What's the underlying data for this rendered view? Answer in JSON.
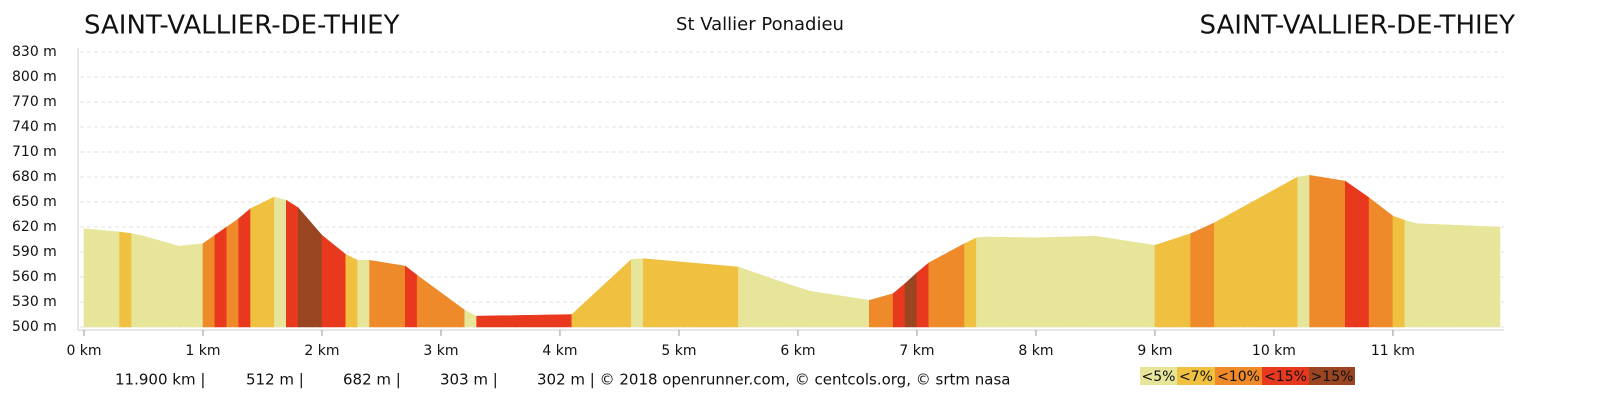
{
  "chart_data": {
    "type": "elevation-profile",
    "title_left": "SAINT-VALLIER-DE-THIEY",
    "title": "St Vallier Ponadieu",
    "title_right": "SAINT-VALLIER-DE-THIEY",
    "x": [
      0,
      0.3,
      0.4,
      0.5,
      0.8,
      1.0,
      1.1,
      1.2,
      1.3,
      1.4,
      1.6,
      1.7,
      1.8,
      2.0,
      2.2,
      2.3,
      2.4,
      2.7,
      2.8,
      3.2,
      3.3,
      4.1,
      4.6,
      4.7,
      5.5,
      5.8,
      6.1,
      6.6,
      6.8,
      6.9,
      7.0,
      7.1,
      7.4,
      7.5,
      7.6,
      8.0,
      8.5,
      9.0,
      9.3,
      9.5,
      10.2,
      10.3,
      10.6,
      10.8,
      11.0,
      11.1,
      11.2,
      11.9
    ],
    "values": [
      618,
      614,
      612,
      609,
      597,
      600,
      610,
      620,
      630,
      642,
      656,
      652,
      643,
      610,
      587,
      580,
      580,
      573,
      562,
      520,
      513,
      515,
      581,
      582,
      572,
      557,
      543,
      532,
      540,
      552,
      565,
      577,
      600,
      607,
      608,
      607,
      609,
      598,
      612,
      625,
      680,
      682,
      675,
      655,
      633,
      628,
      624,
      620
    ],
    "classes": [
      0,
      1,
      0,
      0,
      0,
      2,
      3,
      2,
      3,
      1,
      0,
      3,
      4,
      3,
      1,
      0,
      2,
      3,
      2,
      0,
      3,
      1,
      0,
      1,
      0,
      0,
      0,
      2,
      3,
      4,
      3,
      2,
      1,
      0,
      0,
      0,
      0,
      1,
      2,
      1,
      0,
      2,
      3,
      2,
      1,
      0,
      0
    ],
    "legend": [
      {
        "name": "<5%",
        "color": "#e6e59a"
      },
      {
        "name": "<7%",
        "color": "#f0c040"
      },
      {
        "name": "<10%",
        "color": "#ee8a2a"
      },
      {
        "name": "<15%",
        "color": "#e8391e"
      },
      {
        "name": ">15%",
        "color": "#9a4522"
      }
    ],
    "xlim": [
      0,
      11.9
    ],
    "xticks": [
      {
        "value": 0,
        "label": "0 km"
      },
      {
        "value": 1,
        "label": "1 km"
      },
      {
        "value": 2,
        "label": "2 km"
      },
      {
        "value": 3,
        "label": "3 km"
      },
      {
        "value": 4,
        "label": "4 km"
      },
      {
        "value": 5,
        "label": "5 km"
      },
      {
        "value": 6,
        "label": "6 km"
      },
      {
        "value": 7,
        "label": "7 km"
      },
      {
        "value": 8,
        "label": "8 km"
      },
      {
        "value": 9,
        "label": "9 km"
      },
      {
        "value": 10,
        "label": "10 km"
      },
      {
        "value": 11,
        "label": "11 km"
      }
    ],
    "ylim": [
      500,
      830
    ],
    "yticks": [
      {
        "value": 500,
        "label": "500 m"
      },
      {
        "value": 530,
        "label": "530 m"
      },
      {
        "value": 560,
        "label": "560 m"
      },
      {
        "value": 590,
        "label": "590 m"
      },
      {
        "value": 620,
        "label": "620 m"
      },
      {
        "value": 650,
        "label": "650 m"
      },
      {
        "value": 680,
        "label": "680 m"
      },
      {
        "value": 710,
        "label": "710 m"
      },
      {
        "value": 740,
        "label": "740 m"
      },
      {
        "value": 770,
        "label": "770 m"
      },
      {
        "value": 800,
        "label": "800 m"
      },
      {
        "value": 830,
        "label": "830 m"
      }
    ],
    "grid": true,
    "footer": [
      "11.900 km |",
      "512 m |",
      "682 m |",
      "303 m |",
      "302 m | © 2018 openrunner.com, © centcols.org, © srtm nasa"
    ]
  }
}
